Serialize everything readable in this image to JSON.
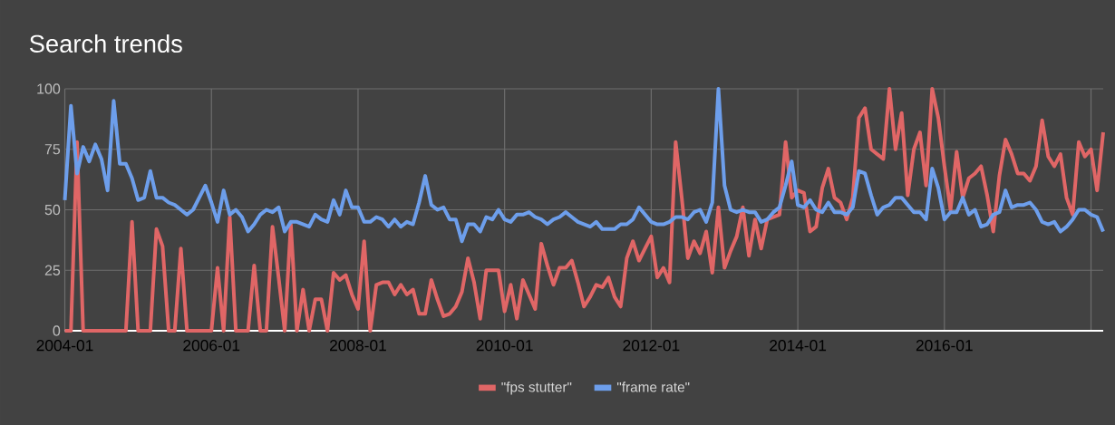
{
  "chart_data": {
    "type": "line",
    "title": "Search trends",
    "x": [
      "2004-01",
      "2004-02",
      "2004-03",
      "2004-04",
      "2004-05",
      "2004-06",
      "2004-07",
      "2004-08",
      "2004-09",
      "2004-10",
      "2004-11",
      "2004-12",
      "2005-01",
      "2005-02",
      "2005-03",
      "2005-04",
      "2005-05",
      "2005-06",
      "2005-07",
      "2005-08",
      "2005-09",
      "2005-10",
      "2005-11",
      "2005-12",
      "2006-01",
      "2006-02",
      "2006-03",
      "2006-04",
      "2006-05",
      "2006-06",
      "2006-07",
      "2006-08",
      "2006-09",
      "2006-10",
      "2006-11",
      "2006-12",
      "2007-01",
      "2007-02",
      "2007-03",
      "2007-04",
      "2007-05",
      "2007-06",
      "2007-07",
      "2007-08",
      "2007-09",
      "2007-10",
      "2007-11",
      "2007-12",
      "2008-01",
      "2008-02",
      "2008-03",
      "2008-04",
      "2008-05",
      "2008-06",
      "2008-07",
      "2008-08",
      "2008-09",
      "2008-10",
      "2008-11",
      "2008-12",
      "2009-01",
      "2009-02",
      "2009-03",
      "2009-04",
      "2009-05",
      "2009-06",
      "2009-07",
      "2009-08",
      "2009-09",
      "2009-10",
      "2009-11",
      "2009-12",
      "2010-01",
      "2010-02",
      "2010-03",
      "2010-04",
      "2010-05",
      "2010-06",
      "2010-07",
      "2010-08",
      "2010-09",
      "2010-10",
      "2010-11",
      "2010-12",
      "2011-01",
      "2011-02",
      "2011-03",
      "2011-04",
      "2011-05",
      "2011-06",
      "2011-07",
      "2011-08",
      "2011-09",
      "2011-10",
      "2011-11",
      "2011-12",
      "2012-01",
      "2012-02",
      "2012-03",
      "2012-04",
      "2012-05",
      "2012-06",
      "2012-07",
      "2012-08",
      "2012-09",
      "2012-10",
      "2012-11",
      "2012-12",
      "2013-01",
      "2013-02",
      "2013-03",
      "2013-04",
      "2013-05",
      "2013-06",
      "2013-07",
      "2013-08",
      "2013-09",
      "2013-10",
      "2013-11",
      "2013-12",
      "2014-01",
      "2014-02",
      "2014-03",
      "2014-04",
      "2014-05",
      "2014-06",
      "2014-07",
      "2014-08",
      "2014-09",
      "2014-10",
      "2014-11",
      "2014-12",
      "2015-01",
      "2015-02",
      "2015-03",
      "2015-04",
      "2015-05",
      "2015-06",
      "2015-07",
      "2015-08",
      "2015-09",
      "2015-10",
      "2015-11",
      "2015-12",
      "2016-01",
      "2016-02",
      "2016-03",
      "2016-04",
      "2016-05",
      "2016-06",
      "2016-07",
      "2016-08",
      "2016-09",
      "2016-10",
      "2016-11",
      "2016-12",
      "2017-01",
      "2017-02",
      "2017-03",
      "2017-04",
      "2017-05",
      "2017-06",
      "2017-07",
      "2017-08",
      "2017-09",
      "2017-10",
      "2017-11",
      "2017-12",
      "2018-01",
      "2018-02",
      "2018-03"
    ],
    "series": [
      {
        "name": "\"fps stutter\"",
        "color": "#e06666",
        "values": [
          0,
          0,
          78,
          0,
          0,
          0,
          0,
          0,
          0,
          0,
          0,
          45,
          0,
          0,
          0,
          42,
          35,
          0,
          0,
          34,
          0,
          0,
          0,
          0,
          0,
          26,
          0,
          47,
          0,
          0,
          0,
          27,
          0,
          0,
          43,
          22,
          0,
          44,
          0,
          17,
          0,
          13,
          13,
          0,
          24,
          21,
          23,
          15,
          9,
          37,
          0,
          19,
          20,
          20,
          15,
          19,
          15,
          17,
          7,
          7,
          21,
          13,
          6,
          7,
          10,
          16,
          30,
          20,
          5,
          25,
          25,
          25,
          8,
          19,
          5,
          21,
          15,
          9,
          36,
          27,
          19,
          26,
          26,
          29,
          20,
          10,
          14,
          19,
          18,
          22,
          14,
          10,
          30,
          37,
          29,
          34,
          39,
          22,
          26,
          20,
          78,
          55,
          30,
          37,
          32,
          41,
          24,
          51,
          26,
          33,
          39,
          51,
          31,
          46,
          34,
          46,
          47,
          48,
          78,
          55,
          58,
          57,
          41,
          43,
          59,
          67,
          55,
          53,
          46,
          55,
          88,
          92,
          75,
          73,
          71,
          100,
          75,
          90,
          56,
          75,
          82,
          60,
          100,
          88,
          68,
          50,
          74,
          55,
          63,
          65,
          68,
          56,
          41,
          64,
          79,
          73,
          65,
          65,
          62,
          68,
          87,
          72,
          68,
          73,
          55,
          48,
          78,
          72,
          75,
          58,
          82
        ]
      },
      {
        "name": "\"frame rate\"",
        "color": "#6d9eeb",
        "values": [
          54,
          93,
          65,
          76,
          70,
          77,
          71,
          58,
          95,
          69,
          69,
          63,
          54,
          55,
          66,
          55,
          55,
          53,
          52,
          50,
          48,
          50,
          55,
          60,
          53,
          45,
          58,
          48,
          50,
          47,
          41,
          44,
          48,
          50,
          49,
          51,
          41,
          45,
          45,
          44,
          43,
          48,
          46,
          45,
          54,
          48,
          58,
          51,
          51,
          45,
          45,
          47,
          46,
          43,
          46,
          43,
          45,
          44,
          53,
          64,
          52,
          50,
          51,
          46,
          46,
          37,
          44,
          44,
          41,
          47,
          46,
          50,
          46,
          45,
          48,
          48,
          49,
          47,
          46,
          44,
          46,
          47,
          49,
          47,
          45,
          44,
          43,
          45,
          42,
          42,
          42,
          44,
          44,
          46,
          51,
          48,
          45,
          44,
          44,
          45,
          47,
          47,
          46,
          49,
          50,
          45,
          53,
          100,
          60,
          50,
          49,
          50,
          49,
          49,
          45,
          46,
          49,
          51,
          60,
          70,
          52,
          51,
          54,
          50,
          49,
          53,
          49,
          49,
          48,
          51,
          66,
          65,
          56,
          48,
          51,
          52,
          55,
          55,
          52,
          49,
          49,
          46,
          67,
          59,
          46,
          49,
          49,
          55,
          48,
          50,
          43,
          44,
          48,
          49,
          58,
          51,
          52,
          52,
          53,
          50,
          45,
          44,
          45,
          41,
          43,
          46,
          50,
          50,
          48,
          47,
          41
        ]
      }
    ],
    "xlim": [
      "2004-01",
      "2018-03"
    ],
    "xticks": [
      "2004-01",
      "2006-01",
      "2008-01",
      "2010-01",
      "2012-01",
      "2014-01",
      "2016-01",
      {
        "value": "2018-01",
        "label": null
      }
    ],
    "ylim": [
      0,
      100
    ],
    "yticks": [
      0,
      25,
      50,
      75,
      100
    ],
    "grid": true,
    "legend": "bottom",
    "line_style": "solid"
  }
}
